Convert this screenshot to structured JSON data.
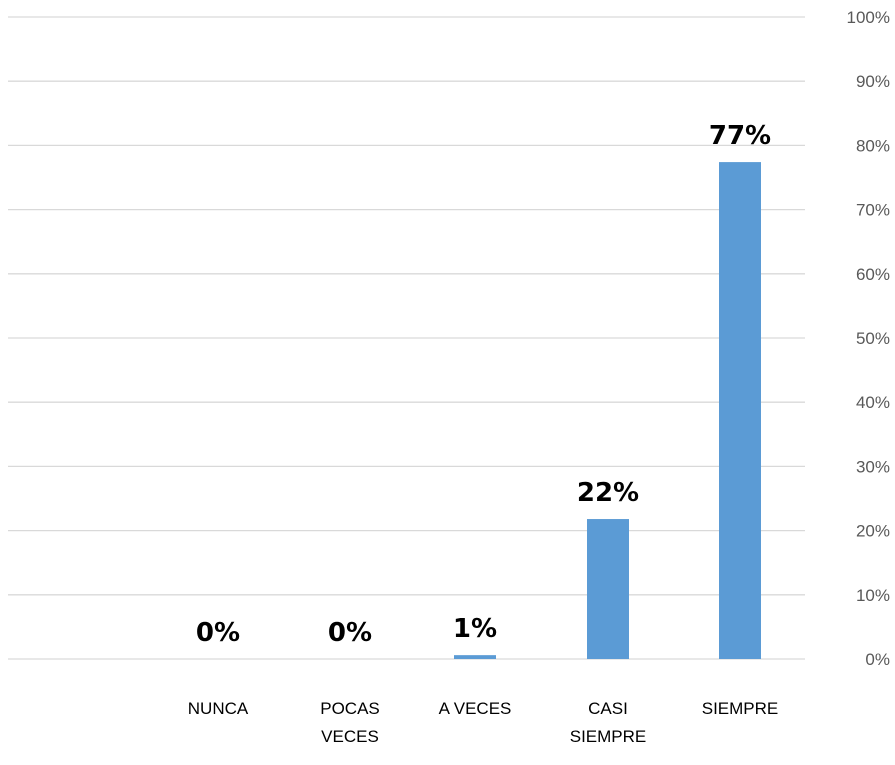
{
  "chart_data": {
    "type": "bar",
    "title": "",
    "xlabel": "",
    "ylabel": "",
    "categories": [
      [
        "NUNCA"
      ],
      [
        "POCAS",
        "VECES"
      ],
      [
        "A VECES"
      ],
      [
        "CASI",
        "SIEMPRE"
      ],
      [
        "SIEMPRE"
      ]
    ],
    "values": [
      0,
      0,
      1,
      22,
      77
    ],
    "data_labels": [
      "0%",
      "0%",
      "1%",
      "22%",
      "77%"
    ],
    "bar_values": [
      0,
      0,
      0.6,
      21.8,
      77.4
    ],
    "ylim": [
      0,
      100
    ],
    "yticks": [
      "0%",
      "10%",
      "20%",
      "30%",
      "40%",
      "50%",
      "60%",
      "70%",
      "80%",
      "90%",
      "100%"
    ],
    "y_axis_side": "right",
    "grid": true,
    "legend": "none",
    "bar_color": "#5b9bd5"
  }
}
